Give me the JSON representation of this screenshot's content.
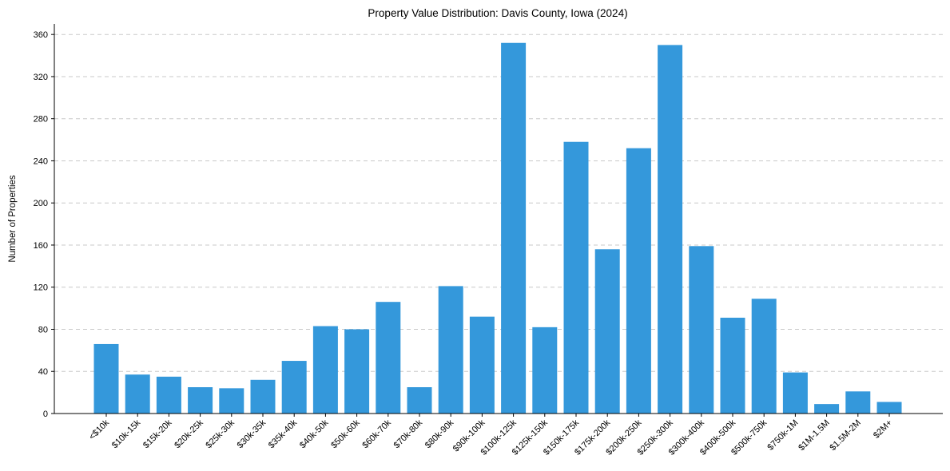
{
  "chart_data": {
    "type": "bar",
    "title": "Property Value Distribution: Davis County, Iowa (2024)",
    "xlabel": "",
    "ylabel": "Number of Properties",
    "categories": [
      "<$10k",
      "$10k-15k",
      "$15k-20k",
      "$20k-25k",
      "$25k-30k",
      "$30k-35k",
      "$35k-40k",
      "$40k-50k",
      "$50k-60k",
      "$60k-70k",
      "$70k-80k",
      "$80k-90k",
      "$90k-100k",
      "$100k-125k",
      "$125k-150k",
      "$150k-175k",
      "$175k-200k",
      "$200k-250k",
      "$250k-300k",
      "$300k-400k",
      "$400k-500k",
      "$500k-750k",
      "$750k-1M",
      "$1M-1.5M",
      "$1.5M-2M",
      "$2M+"
    ],
    "values": [
      66,
      37,
      35,
      25,
      24,
      32,
      50,
      83,
      80,
      106,
      25,
      121,
      92,
      352,
      82,
      258,
      156,
      252,
      350,
      159,
      91,
      109,
      39,
      9,
      21,
      11
    ],
    "ylim": [
      0,
      370
    ],
    "yticks": [
      0,
      40,
      80,
      120,
      160,
      200,
      240,
      280,
      320,
      360
    ],
    "grid": "y-dashed",
    "bar_color": "#3498db"
  }
}
